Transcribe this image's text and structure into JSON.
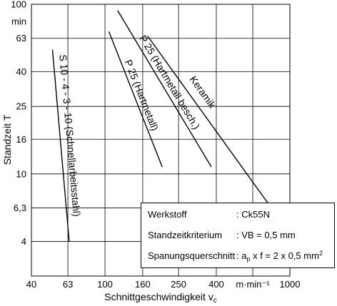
{
  "chart_data": {
    "type": "line",
    "grid": true,
    "x_axis": {
      "label": "Schnittgeschwindigkeit v",
      "label_sub": "c",
      "unit": "m·min⁻¹",
      "scale": "log",
      "range": [
        40,
        1000
      ],
      "grid_values": [
        63,
        100,
        160,
        250,
        400,
        630
      ],
      "tick_labels": [
        {
          "value": 40,
          "text": "40"
        },
        {
          "value": 63,
          "text": "63"
        },
        {
          "value": 100,
          "text": "100"
        },
        {
          "value": 160,
          "text": "160"
        },
        {
          "value": 250,
          "text": "250"
        },
        {
          "value": 400,
          "text": "400"
        },
        {
          "value": 1000,
          "text": "1000"
        }
      ]
    },
    "y_axis": {
      "label": "Standzeit T",
      "unit": "min",
      "scale": "log",
      "range": [
        2.5,
        100
      ],
      "grid_values": [
        63,
        40,
        25,
        16,
        10,
        6.3,
        4
      ],
      "tick_labels": [
        {
          "value": 100,
          "text": "100"
        },
        {
          "value": 63,
          "text": "63"
        },
        {
          "value": 40,
          "text": "40"
        },
        {
          "value": 25,
          "text": "25"
        },
        {
          "value": 16,
          "text": "16"
        },
        {
          "value": 10,
          "text": "10"
        },
        {
          "value": 6.3,
          "text": "6,3"
        },
        {
          "value": 4,
          "text": "4"
        }
      ]
    },
    "series": [
      {
        "name": "S 10 - 4 - 3 - 10 (Schnellarbeitsstahl)",
        "points": [
          [
            52,
            54
          ],
          [
            64,
            4
          ]
        ]
      },
      {
        "name": "P 25 (Hartmetall)",
        "points": [
          [
            105,
            69
          ],
          [
            204,
            11
          ]
        ]
      },
      {
        "name": "P 25 (Hartmetall besch.)",
        "points": [
          [
            117,
            92
          ],
          [
            376,
            11
          ]
        ]
      },
      {
        "name": "Keramik",
        "points": [
          [
            170,
            65
          ],
          [
            794,
            6.3
          ]
        ]
      }
    ],
    "info_box": {
      "position": "bottom-right",
      "rows": [
        {
          "label": "Werkstoff",
          "value": ": Ck55N"
        },
        {
          "label": "Standzeitkriterium",
          "value": ": VB = 0,5 mm"
        },
        {
          "label": "Spanungsquerschnitt",
          "value": ": a",
          "value_sub": "p",
          "value_rest": " x f = 2 x 0,5 mm",
          "value_sup": "2"
        }
      ]
    }
  }
}
